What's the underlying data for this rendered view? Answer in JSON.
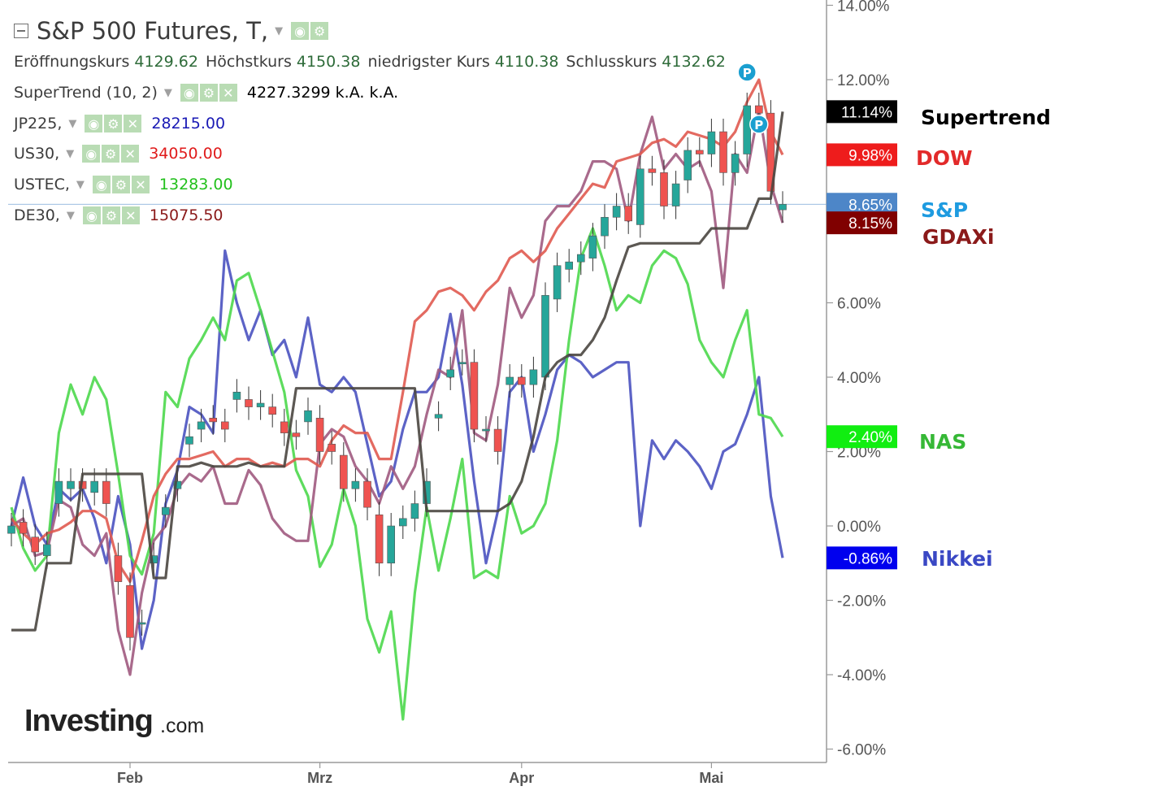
{
  "header": {
    "title": "S&P 500 Futures, T,",
    "ohlc": [
      {
        "label": "Eröffnungskurs",
        "value": "4129.62"
      },
      {
        "label": "Höchstkurs",
        "value": "4150.38"
      },
      {
        "label": "niedrigster Kurs",
        "value": "4110.38"
      },
      {
        "label": "Schlusskurs",
        "value": "4132.62"
      }
    ],
    "indicators": [
      {
        "label": "SuperTrend (10, 2)",
        "value": "4227.3299 k.A. k.A.",
        "color": "#000000"
      },
      {
        "label": "JP225,",
        "value": "28215.00",
        "color": "#1a1ab5"
      },
      {
        "label": "US30,",
        "value": "34050.00",
        "color": "#e01b1b"
      },
      {
        "label": "USTEC,",
        "value": "13283.00",
        "color": "#22c01c"
      },
      {
        "label": "DE30,",
        "value": "15075.50",
        "color": "#8b1a1a"
      }
    ]
  },
  "icons": {
    "collapse": "collapse-icon",
    "dropdown": "chevron-down-icon",
    "eye": "eye-icon",
    "settings": "gear-icon",
    "close": "close-icon"
  },
  "side_labels": [
    {
      "text": "Supertrend",
      "color": "#000000",
      "pct": 11.14
    },
    {
      "text": "DOW",
      "color": "#e22a2a",
      "pct": 9.98
    },
    {
      "text": "S&P",
      "color": "#1e9be0",
      "pct": 8.65
    },
    {
      "text": "GDAXi",
      "color": "#8b1a1a",
      "pct": 8.15
    },
    {
      "text": "NAS",
      "color": "#36b836",
      "pct": 2.4
    },
    {
      "text": "Nikkei",
      "color": "#3a48c4",
      "pct": -0.86
    }
  ],
  "branding": {
    "logo": "Investing",
    "suffix": ".com"
  },
  "chart_data": {
    "type": "line",
    "y_axis": {
      "ticks": [
        -6,
        -4,
        -2,
        0,
        2,
        4,
        6,
        8,
        10,
        12,
        14
      ],
      "format": "percent",
      "range": [
        -6,
        14
      ]
    },
    "x_labels": [
      {
        "label": "Feb",
        "i": 10
      },
      {
        "label": "Mrz",
        "i": 26
      },
      {
        "label": "Apr",
        "i": 43
      },
      {
        "label": "Mai",
        "i": 59
      }
    ],
    "x_count": 66,
    "reference_line_pct": 8.65,
    "price_tags": [
      {
        "value": "11.14%",
        "pct": 11.14,
        "bg": "#000000"
      },
      {
        "value": "9.98%",
        "pct": 9.98,
        "bg": "#ee1c1c"
      },
      {
        "value": "8.65%",
        "pct": 8.65,
        "bg": "#4d86c8"
      },
      {
        "value": "8.15%",
        "pct": 8.15,
        "bg": "#800000"
      },
      {
        "value": "2.40%",
        "pct": 2.4,
        "bg": "#11ee11"
      },
      {
        "value": "-0.86%",
        "pct": -0.86,
        "bg": "#0000ee"
      }
    ],
    "series": [
      {
        "name": "Nikkei",
        "color": "#4a52c0",
        "values": [
          0,
          1.3,
          0,
          -0.5,
          1.0,
          0.7,
          1.0,
          0.2,
          -1.0,
          0.8,
          -0.5,
          -3.3,
          -2.0,
          0.6,
          1.5,
          3.2,
          3.0,
          2.5,
          7.4,
          6.0,
          5.0,
          5.8,
          4.6,
          5.0,
          4.0,
          5.6,
          3.8,
          3.6,
          4.0,
          3.6,
          2.2,
          0.8,
          1.2,
          2.6,
          3.6,
          3.6,
          4.0,
          5.7,
          3.8,
          1.2,
          -1.0,
          0.4,
          3.6,
          4.0,
          2.0,
          3.0,
          4.2,
          4.6,
          4.4,
          4.0,
          4.2,
          4.4,
          4.4,
          0.0,
          2.3,
          1.8,
          2.3,
          2.0,
          1.6,
          1.0,
          2.0,
          2.2,
          3.0,
          4.0,
          0.8,
          -0.86
        ]
      },
      {
        "name": "NAS",
        "color": "#4cd84c",
        "values": [
          0.5,
          -0.6,
          -1.2,
          -0.8,
          2.5,
          3.8,
          3.0,
          4.0,
          3.4,
          1.4,
          -0.8,
          -1.3,
          -0.2,
          3.6,
          3.2,
          4.5,
          5.0,
          5.6,
          5.0,
          6.6,
          6.8,
          5.8,
          4.7,
          3.6,
          1.5,
          0.8,
          -1.1,
          -0.5,
          1.0,
          0.0,
          -2.5,
          -3.4,
          -2.3,
          -5.2,
          -1.8,
          0.5,
          -1.2,
          0.2,
          1.8,
          -1.4,
          -1.2,
          -1.4,
          0.8,
          -0.2,
          0.0,
          0.6,
          2.3,
          5.0,
          7.2,
          8.0,
          7.0,
          5.8,
          6.2,
          6.0,
          7.0,
          7.4,
          7.2,
          6.5,
          5.0,
          4.4,
          4.0,
          5.0,
          5.8,
          3.0,
          2.9,
          2.4
        ]
      },
      {
        "name": "GDAXi",
        "color": "#a05a80",
        "values": [
          0,
          0.2,
          -0.8,
          -0.7,
          0.7,
          0.5,
          -0.5,
          -0.8,
          -0.2,
          -2.8,
          -4.0,
          -1.8,
          -0.4,
          0.0,
          1.0,
          1.4,
          1.2,
          1.6,
          0.6,
          0.6,
          1.5,
          1.1,
          0.2,
          -0.2,
          -0.4,
          -0.4,
          2.2,
          2.6,
          2.4,
          1.6,
          1.2,
          0.6,
          1.6,
          1.0,
          1.6,
          3.0,
          4.2,
          4.0,
          5.8,
          2.5,
          2.3,
          3.8,
          6.4,
          5.6,
          6.2,
          8.2,
          8.6,
          8.6,
          9.0,
          9.8,
          9.8,
          9.6,
          8.2,
          10.0,
          11.0,
          9.6,
          10.0,
          9.6,
          9.8,
          9.0,
          6.4,
          10.0,
          9.5,
          11.2,
          9.2,
          8.15
        ]
      },
      {
        "name": "DOW",
        "color": "#e05a50",
        "values": [
          0.2,
          -0.2,
          -0.5,
          -0.2,
          -0.1,
          0.1,
          0.4,
          0.4,
          0.2,
          -1.0,
          -1.5,
          -0.4,
          0.8,
          1.4,
          1.8,
          1.8,
          1.9,
          2.0,
          1.6,
          1.8,
          1.8,
          1.6,
          1.7,
          1.6,
          1.8,
          1.8,
          1.6,
          2.3,
          2.7,
          2.5,
          2.5,
          1.8,
          1.8,
          3.6,
          5.5,
          5.8,
          6.3,
          6.4,
          6.2,
          5.8,
          6.3,
          6.6,
          7.2,
          7.4,
          7.1,
          7.4,
          8.0,
          8.4,
          8.8,
          9.2,
          9.1,
          9.8,
          9.9,
          10.0,
          10.3,
          10.4,
          10.2,
          10.6,
          10.5,
          10.4,
          10.2,
          10.6,
          11.4,
          12.0,
          10.6,
          9.98
        ]
      },
      {
        "name": "Supertrend",
        "color": "#4a4640",
        "values": [
          -2.8,
          -2.8,
          -2.8,
          -1.0,
          -1.0,
          -1.0,
          1.4,
          1.4,
          1.4,
          1.4,
          1.4,
          1.4,
          -1.4,
          -1.4,
          1.6,
          1.6,
          1.7,
          1.6,
          1.6,
          1.6,
          1.7,
          1.6,
          1.6,
          1.6,
          3.7,
          3.7,
          3.7,
          3.7,
          3.7,
          3.7,
          3.7,
          3.7,
          3.7,
          3.7,
          3.7,
          0.4,
          0.4,
          0.4,
          0.4,
          0.4,
          0.4,
          0.4,
          0.6,
          1.2,
          2.4,
          4.0,
          4.4,
          4.6,
          4.6,
          5.0,
          5.6,
          6.6,
          7.5,
          7.6,
          7.6,
          7.6,
          7.6,
          7.6,
          7.6,
          8.0,
          8.0,
          8.0,
          8.0,
          8.8,
          8.8,
          11.14
        ]
      }
    ],
    "candles": {
      "name": "S&P 500 Futures",
      "up_color": "#26a69a",
      "down_color": "#ef5350",
      "closes": [
        0,
        -0.2,
        -0.7,
        -0.5,
        1.2,
        1.2,
        1.0,
        1.2,
        0.6,
        -1.5,
        -3.0,
        -2.6,
        -0.8,
        0.5,
        1.2,
        2.4,
        2.8,
        2.8,
        2.6,
        3.6,
        3.2,
        3.3,
        3.0,
        2.5,
        2.4,
        3.1,
        2.0,
        2.0,
        1.0,
        1.2,
        0.5,
        -1.0,
        0.0,
        0.2,
        0.6,
        1.2,
        3.0,
        4.2,
        4.4,
        2.6,
        2.6,
        2.0,
        4.0,
        3.8,
        4.2,
        6.2,
        7.0,
        7.1,
        7.3,
        7.8,
        8.3,
        8.6,
        8.2,
        9.6,
        9.5,
        8.6,
        9.2,
        10.1,
        10.0,
        10.6,
        9.5,
        10.0,
        11.3,
        11.1,
        9.0,
        8.65
      ],
      "opens": [
        -0.2,
        0.1,
        -0.3,
        -0.8,
        0.6,
        1.0,
        1.2,
        0.9,
        1.2,
        -0.8,
        -1.6,
        -2.6,
        -1.0,
        0.3,
        1.0,
        2.2,
        2.6,
        2.9,
        2.8,
        3.4,
        3.4,
        3.2,
        3.2,
        2.8,
        2.5,
        2.8,
        2.9,
        2.2,
        1.9,
        1.0,
        1.2,
        0.3,
        -1.0,
        0.0,
        0.2,
        0.6,
        2.9,
        4.0,
        4.4,
        4.4,
        2.6,
        2.6,
        3.8,
        4.0,
        3.8,
        4.0,
        6.1,
        6.9,
        7.1,
        7.2,
        7.8,
        8.3,
        8.6,
        8.1,
        9.6,
        9.5,
        8.6,
        9.3,
        10.1,
        10.0,
        10.6,
        9.5,
        10.0,
        11.3,
        11.1,
        8.5
      ]
    },
    "pivot_markers": [
      {
        "i": 62,
        "pct": 12.2,
        "label": "P"
      },
      {
        "i": 63,
        "pct": 10.8,
        "label": "P"
      }
    ]
  }
}
